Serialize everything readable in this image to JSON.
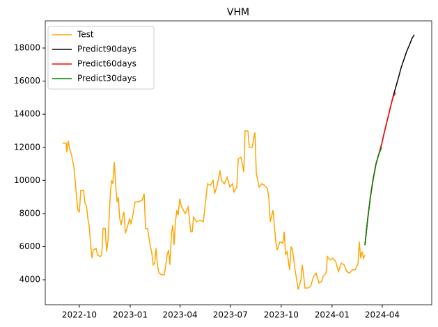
{
  "chart_data": {
    "type": "line",
    "title": "VHM",
    "xlim": [
      2022.579,
      2024.494
    ],
    "ylim": [
      2490,
      19640
    ],
    "xticks": [
      {
        "value": 2022.748,
        "label": "2022-10"
      },
      {
        "value": 2023.0,
        "label": "2023-01"
      },
      {
        "value": 2023.247,
        "label": "2023-04"
      },
      {
        "value": 2023.496,
        "label": "2023-07"
      },
      {
        "value": 2023.748,
        "label": "2023-10"
      },
      {
        "value": 2024.0,
        "label": "2024-01"
      },
      {
        "value": 2024.249,
        "label": "2024-04"
      }
    ],
    "yticks": [
      4000,
      6000,
      8000,
      10000,
      12000,
      14000,
      16000,
      18000
    ],
    "legend": "upper left",
    "series": [
      {
        "name": "Test",
        "color": "#ffa500",
        "x": [
          2022.665,
          2022.683,
          2022.686,
          2022.693,
          2022.7,
          2022.71,
          2022.721,
          2022.727,
          2022.734,
          2022.741,
          2022.748,
          2022.755,
          2022.769,
          2022.776,
          2022.783,
          2022.79,
          2022.796,
          2022.803,
          2022.81,
          2022.817,
          2022.831,
          2022.838,
          2022.852,
          2022.859,
          2022.865,
          2022.876,
          2022.883,
          2022.89,
          2022.9,
          2022.907,
          2022.914,
          2022.921,
          2022.928,
          2022.935,
          2022.941,
          2022.948,
          2022.955,
          2022.962,
          2022.969,
          2022.976,
          2022.986,
          2022.997,
          2023.003,
          2023.01,
          2023.024,
          2023.038,
          2023.059,
          2023.069,
          2023.076,
          2023.086,
          2023.097,
          2023.107,
          2023.114,
          2023.121,
          2023.128,
          2023.135,
          2023.142,
          2023.155,
          2023.169,
          2023.176,
          2023.183,
          2023.19,
          2023.197,
          2023.204,
          2023.211,
          2023.217,
          2023.224,
          2023.231,
          2023.238,
          2023.245,
          2023.252,
          2023.259,
          2023.273,
          2023.287,
          2023.3,
          2023.307,
          2023.314,
          2023.328,
          2023.349,
          2023.362,
          2023.376,
          2023.383,
          2023.397,
          2023.411,
          2023.418,
          2023.431,
          2023.445,
          2023.452,
          2023.466,
          2023.48,
          2023.494,
          2023.507,
          2023.514,
          2023.528,
          2023.535,
          2023.549,
          2023.563,
          2023.569,
          2023.583,
          2023.59,
          2023.604,
          2023.618,
          2023.625,
          2023.639,
          2023.652,
          2023.666,
          2023.68,
          2023.687,
          2023.694,
          2023.708,
          2023.721,
          2023.728,
          2023.742,
          2023.756,
          2023.763,
          2023.77,
          2023.777,
          2023.79,
          2023.797,
          2023.804,
          2023.818,
          2023.825,
          2023.832,
          2023.846,
          2023.852,
          2023.859,
          2023.866,
          2023.88,
          2023.894,
          2023.908,
          2023.921,
          2023.935,
          2023.949,
          2023.956,
          2023.97,
          2023.977,
          2023.991,
          2024.004,
          2024.018,
          2024.032,
          2024.046,
          2024.06,
          2024.073,
          2024.087,
          2024.101,
          2024.115,
          2024.129,
          2024.135,
          2024.142,
          2024.149,
          2024.156,
          2024.163
        ],
        "values": [
          12250,
          12250,
          11700,
          12400,
          11900,
          11500,
          10800,
          10000,
          9000,
          8200,
          8100,
          9400,
          9400,
          8600,
          8500,
          7700,
          7300,
          6300,
          5300,
          5800,
          5900,
          5500,
          5400,
          5500,
          7100,
          7100,
          5700,
          6400,
          8900,
          10000,
          9800,
          11100,
          9700,
          8700,
          9000,
          7700,
          7300,
          7800,
          8100,
          6800,
          7200,
          7700,
          7400,
          7700,
          8700,
          8700,
          8800,
          9200,
          7100,
          7100,
          6200,
          5600,
          4900,
          5000,
          5900,
          4900,
          4400,
          4300,
          4300,
          4900,
          5500,
          5800,
          4900,
          6800,
          7300,
          6100,
          7500,
          8200,
          7900,
          8900,
          8500,
          8300,
          8000,
          8400,
          6900,
          6900,
          7800,
          7500,
          7600,
          7500,
          9000,
          9800,
          9700,
          10000,
          9200,
          9700,
          10600,
          10000,
          9800,
          10200,
          9600,
          9800,
          9300,
          9600,
          11300,
          11400,
          10500,
          13000,
          13000,
          12000,
          12000,
          12900,
          10400,
          9600,
          9800,
          9700,
          9500,
          8900,
          7500,
          8200,
          6300,
          5800,
          6300,
          6200,
          6900,
          5500,
          5700,
          4600,
          6000,
          5800,
          4500,
          4000,
          3400,
          4000,
          4900,
          4300,
          3500,
          3500,
          3600,
          4200,
          4400,
          3800,
          3900,
          4200,
          4400,
          5400,
          5200,
          5300,
          5100,
          4500,
          5000,
          4900,
          4500,
          4400,
          4600,
          4600,
          5000,
          6300,
          5300,
          5700,
          5300,
          5500
        ]
      },
      {
        "name": "Predict90days",
        "color": "#000000",
        "x": [
          2024.163,
          2024.177,
          2024.19,
          2024.204,
          2024.218,
          2024.232,
          2024.246,
          2024.259,
          2024.273,
          2024.287,
          2024.301,
          2024.315,
          2024.329,
          2024.342,
          2024.356,
          2024.37,
          2024.384,
          2024.397,
          2024.408
        ],
        "values": [
          6100,
          7700,
          9000,
          10100,
          11000,
          11600,
          12200,
          12900,
          13600,
          14300,
          15000,
          15600,
          16200,
          16800,
          17300,
          17800,
          18200,
          18600,
          18800
        ]
      },
      {
        "name": "Predict60days",
        "color": "#ff0000",
        "x": [
          2024.163,
          2024.177,
          2024.19,
          2024.204,
          2024.218,
          2024.232,
          2024.246,
          2024.259,
          2024.273,
          2024.287,
          2024.301,
          2024.315
        ],
        "values": [
          6100,
          7700,
          9000,
          10100,
          11000,
          11600,
          12200,
          12900,
          13600,
          14300,
          15000,
          15300
        ]
      },
      {
        "name": "Predict30days",
        "color": "#008000",
        "x": [
          2024.163,
          2024.177,
          2024.19,
          2024.204,
          2024.218,
          2024.232,
          2024.246
        ],
        "values": [
          6100,
          7700,
          9000,
          10100,
          11000,
          11600,
          12000
        ]
      }
    ]
  }
}
